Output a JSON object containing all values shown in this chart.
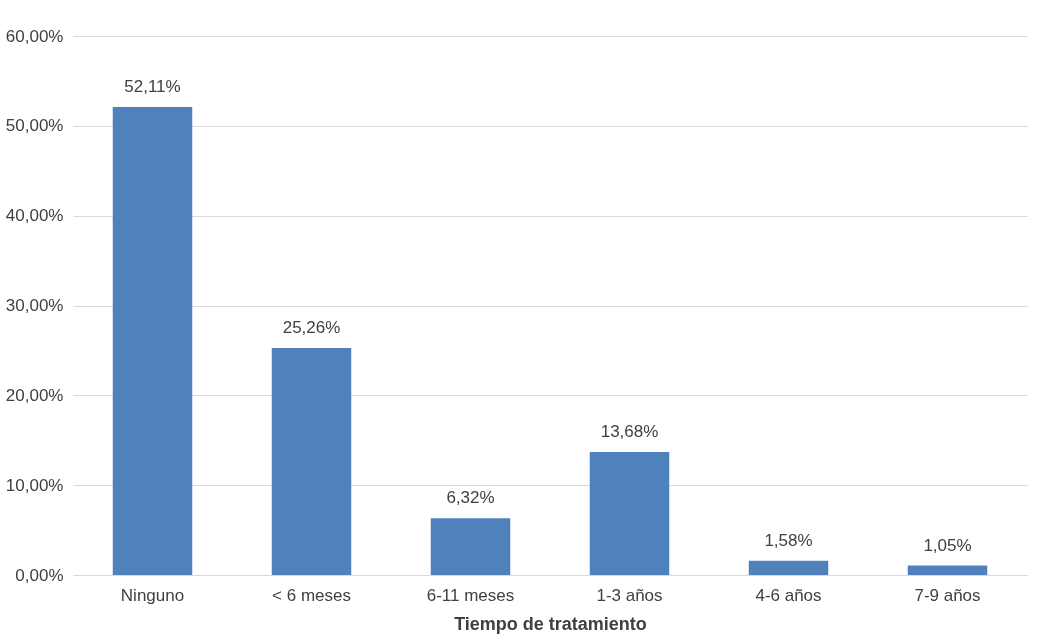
{
  "chart_data": {
    "type": "bar",
    "xlabel": "Tiempo de tratamiento",
    "categories": [
      "Ninguno",
      "< 6 meses",
      "6-11 meses",
      "1-3 años",
      "4-6 años",
      "7-9 años"
    ],
    "values": [
      52.11,
      25.26,
      6.32,
      13.68,
      1.58,
      1.05
    ],
    "value_labels": [
      "52,11%",
      "25,26%",
      "6,32%",
      "13,68%",
      "1,58%",
      "1,05%"
    ],
    "color": "#4f81bd",
    "ylim": [
      0,
      60
    ],
    "yticks": [
      {
        "value": 0,
        "label": "0,00%"
      },
      {
        "value": 10,
        "label": "10,00%"
      },
      {
        "value": 20,
        "label": "20,00%"
      },
      {
        "value": 30,
        "label": "30,00%"
      },
      {
        "value": 40,
        "label": "40,00%"
      },
      {
        "value": 50,
        "label": "50,00%"
      },
      {
        "value": 60,
        "label": "60,00%"
      }
    ],
    "grid": "y"
  }
}
